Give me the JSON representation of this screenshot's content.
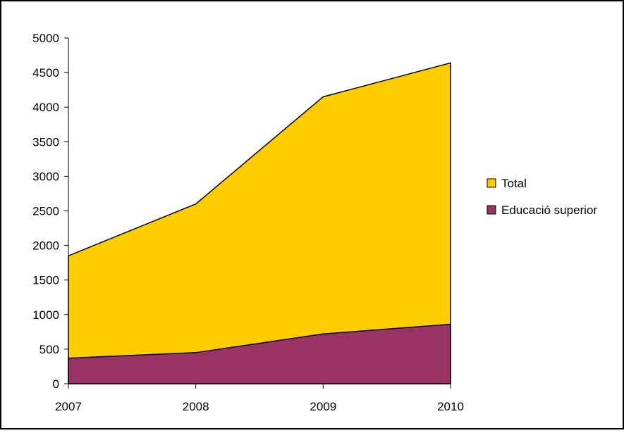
{
  "chart_data": {
    "type": "area",
    "stacked": false,
    "categories": [
      "2007",
      "2008",
      "2009",
      "2010"
    ],
    "series": [
      {
        "name": "Total",
        "values": [
          1850,
          2600,
          4150,
          4640
        ],
        "color": "#FFCC00"
      },
      {
        "name": "Educació superior",
        "values": [
          370,
          450,
          720,
          860
        ],
        "color": "#993366"
      }
    ],
    "y_ticks": [
      "0",
      "500",
      "1000",
      "1500",
      "2000",
      "2500",
      "3000",
      "3500",
      "4000",
      "4500",
      "5000"
    ],
    "ylim": [
      0,
      5000
    ],
    "grid": false,
    "legend": "right",
    "title": "",
    "xlabel": "",
    "ylabel": ""
  }
}
